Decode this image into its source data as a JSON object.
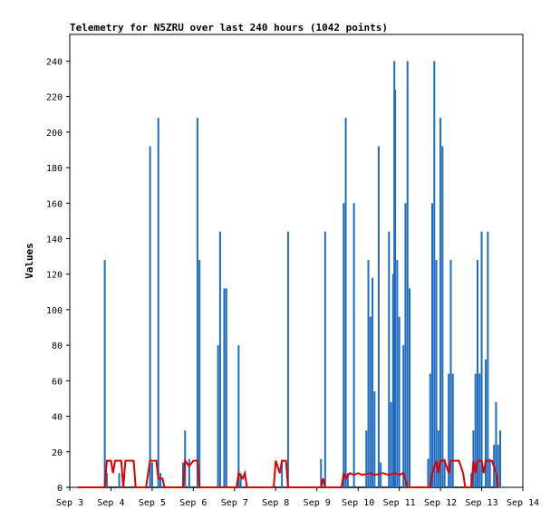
{
  "chart_data": {
    "type": "line",
    "title": "Telemetry for N5ZRU over last 240 hours (1042 points)",
    "ylabel": "Values",
    "xlabel": "",
    "ylim": [
      0,
      255
    ],
    "y_ticks": [
      0,
      20,
      40,
      60,
      80,
      100,
      120,
      140,
      160,
      180,
      200,
      220,
      240
    ],
    "xlim": [
      3.0,
      14.0
    ],
    "x_ticks": [
      {
        "value": 3,
        "label": "Sep 3"
      },
      {
        "value": 4,
        "label": "Sep 4"
      },
      {
        "value": 5,
        "label": "Sep 5"
      },
      {
        "value": 6,
        "label": "Sep 6"
      },
      {
        "value": 7,
        "label": "Sep 7"
      },
      {
        "value": 8,
        "label": "Sep 8"
      },
      {
        "value": 9,
        "label": "Sep 9"
      },
      {
        "value": 10,
        "label": "Sep 10"
      },
      {
        "value": 11,
        "label": "Sep 11"
      },
      {
        "value": 12,
        "label": "Sep 12"
      },
      {
        "value": 13,
        "label": "Sep 13"
      },
      {
        "value": 14,
        "label": "Sep 14"
      }
    ],
    "series": [
      {
        "color": "#000000",
        "style": "line",
        "points": [
          [
            3.2,
            0
          ],
          [
            13.4,
            0
          ]
        ]
      },
      {
        "color": "#1f6cc0",
        "style": "spikes",
        "points": [
          [
            3.85,
            128
          ],
          [
            3.9,
            8
          ],
          [
            4.2,
            8
          ],
          [
            4.95,
            192
          ],
          [
            5.0,
            14
          ],
          [
            5.15,
            208
          ],
          [
            5.2,
            8
          ],
          [
            5.75,
            14
          ],
          [
            5.8,
            32
          ],
          [
            5.9,
            16
          ],
          [
            6.1,
            208
          ],
          [
            6.15,
            128
          ],
          [
            6.6,
            80
          ],
          [
            6.65,
            144
          ],
          [
            6.75,
            112
          ],
          [
            6.8,
            112
          ],
          [
            7.1,
            80
          ],
          [
            7.15,
            8
          ],
          [
            8.15,
            14
          ],
          [
            8.3,
            144
          ],
          [
            9.1,
            16
          ],
          [
            9.2,
            144
          ],
          [
            9.65,
            160
          ],
          [
            9.7,
            208
          ],
          [
            9.75,
            8
          ],
          [
            9.9,
            160
          ],
          [
            10.2,
            32
          ],
          [
            10.25,
            128
          ],
          [
            10.3,
            96
          ],
          [
            10.35,
            118
          ],
          [
            10.4,
            54
          ],
          [
            10.5,
            192
          ],
          [
            10.55,
            14
          ],
          [
            10.75,
            144
          ],
          [
            10.8,
            48
          ],
          [
            10.85,
            120
          ],
          [
            10.88,
            240
          ],
          [
            10.9,
            224
          ],
          [
            10.95,
            128
          ],
          [
            11.0,
            96
          ],
          [
            11.1,
            80
          ],
          [
            11.15,
            160
          ],
          [
            11.2,
            240
          ],
          [
            11.25,
            112
          ],
          [
            11.7,
            16
          ],
          [
            11.75,
            64
          ],
          [
            11.8,
            160
          ],
          [
            11.85,
            240
          ],
          [
            11.9,
            128
          ],
          [
            11.95,
            32
          ],
          [
            12.0,
            208
          ],
          [
            12.05,
            192
          ],
          [
            12.1,
            16
          ],
          [
            12.2,
            64
          ],
          [
            12.25,
            128
          ],
          [
            12.3,
            64
          ],
          [
            12.75,
            8
          ],
          [
            12.8,
            32
          ],
          [
            12.85,
            64
          ],
          [
            12.9,
            128
          ],
          [
            12.95,
            64
          ],
          [
            13.0,
            144
          ],
          [
            13.1,
            72
          ],
          [
            13.15,
            144
          ],
          [
            13.2,
            16
          ],
          [
            13.3,
            24
          ],
          [
            13.35,
            48
          ],
          [
            13.4,
            24
          ],
          [
            13.45,
            32
          ]
        ]
      },
      {
        "color": "#dd0000",
        "style": "line",
        "points": [
          [
            3.2,
            0
          ],
          [
            3.85,
            0
          ],
          [
            3.9,
            15
          ],
          [
            4.0,
            15
          ],
          [
            4.05,
            8
          ],
          [
            4.1,
            15
          ],
          [
            4.25,
            15
          ],
          [
            4.3,
            0
          ],
          [
            4.35,
            15
          ],
          [
            4.55,
            15
          ],
          [
            4.6,
            0
          ],
          [
            4.85,
            0
          ],
          [
            4.95,
            15
          ],
          [
            5.1,
            15
          ],
          [
            5.15,
            5
          ],
          [
            5.25,
            5
          ],
          [
            5.3,
            0
          ],
          [
            5.75,
            0
          ],
          [
            5.8,
            15
          ],
          [
            5.9,
            12
          ],
          [
            6.0,
            15
          ],
          [
            6.1,
            15
          ],
          [
            6.15,
            0
          ],
          [
            7.05,
            0
          ],
          [
            7.1,
            8
          ],
          [
            7.2,
            5
          ],
          [
            7.25,
            8
          ],
          [
            7.3,
            0
          ],
          [
            7.95,
            0
          ],
          [
            8.0,
            15
          ],
          [
            8.1,
            8
          ],
          [
            8.15,
            15
          ],
          [
            8.25,
            15
          ],
          [
            8.3,
            0
          ],
          [
            9.1,
            0
          ],
          [
            9.15,
            5
          ],
          [
            9.2,
            0
          ],
          [
            9.6,
            0
          ],
          [
            9.65,
            8
          ],
          [
            9.7,
            5
          ],
          [
            9.8,
            8
          ],
          [
            9.9,
            7
          ],
          [
            10.0,
            8
          ],
          [
            10.1,
            7
          ],
          [
            10.3,
            8
          ],
          [
            10.4,
            7
          ],
          [
            10.6,
            8
          ],
          [
            10.75,
            7
          ],
          [
            10.9,
            8
          ],
          [
            11.0,
            7
          ],
          [
            11.1,
            8
          ],
          [
            11.2,
            0
          ],
          [
            11.75,
            0
          ],
          [
            11.8,
            8
          ],
          [
            11.9,
            15
          ],
          [
            11.95,
            8
          ],
          [
            12.0,
            15
          ],
          [
            12.1,
            15
          ],
          [
            12.2,
            8
          ],
          [
            12.25,
            15
          ],
          [
            12.45,
            15
          ],
          [
            12.55,
            8
          ],
          [
            12.6,
            0
          ],
          [
            12.75,
            0
          ],
          [
            12.8,
            15
          ],
          [
            12.85,
            8
          ],
          [
            12.9,
            15
          ],
          [
            13.0,
            15
          ],
          [
            13.05,
            8
          ],
          [
            13.1,
            15
          ],
          [
            13.25,
            15
          ],
          [
            13.35,
            8
          ],
          [
            13.4,
            0
          ]
        ]
      }
    ]
  }
}
